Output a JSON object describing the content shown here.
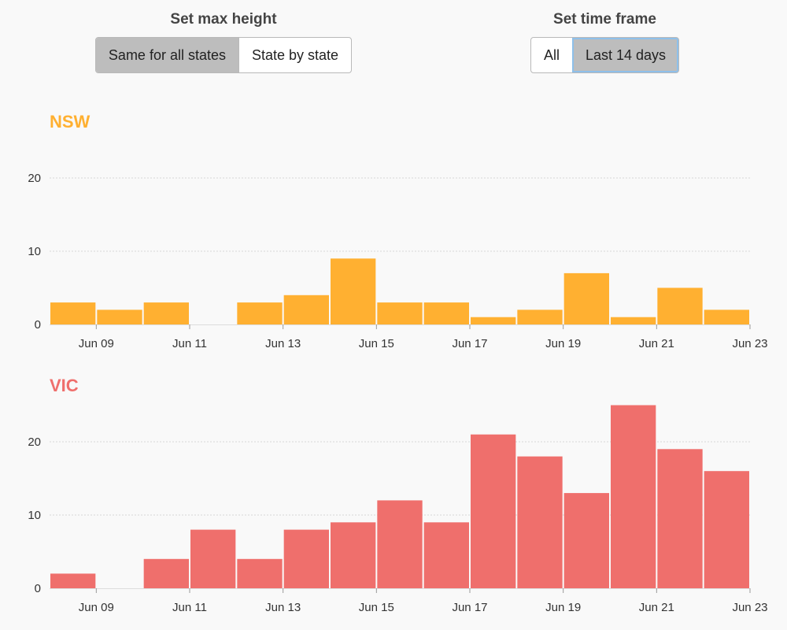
{
  "controls": {
    "max_height": {
      "title": "Set max height",
      "options": [
        "Same for all states",
        "State by state"
      ],
      "selected": "Same for all states"
    },
    "time_frame": {
      "title": "Set time frame",
      "options": [
        "All",
        "Last 14 days"
      ],
      "selected": "Last 14 days"
    }
  },
  "x_ticks": [
    "Jun 09",
    "Jun 11",
    "Jun 13",
    "Jun 15",
    "Jun 17",
    "Jun 19",
    "Jun 21",
    "Jun 23"
  ],
  "chart_data": [
    {
      "type": "bar",
      "title": "NSW",
      "color": "#ffb031",
      "x": [
        "Jun 08",
        "Jun 09",
        "Jun 10",
        "Jun 11",
        "Jun 12",
        "Jun 13",
        "Jun 14",
        "Jun 15",
        "Jun 16",
        "Jun 17",
        "Jun 18",
        "Jun 19",
        "Jun 20",
        "Jun 21",
        "Jun 22"
      ],
      "values": [
        3,
        2,
        3,
        0,
        3,
        4,
        9,
        3,
        3,
        1,
        2,
        7,
        1,
        5,
        2
      ],
      "y_ticks": [
        0,
        10,
        20
      ],
      "ylim": [
        0,
        26
      ],
      "grid": true
    },
    {
      "type": "bar",
      "title": "VIC",
      "color": "#ef6f6c",
      "x": [
        "Jun 08",
        "Jun 09",
        "Jun 10",
        "Jun 11",
        "Jun 12",
        "Jun 13",
        "Jun 14",
        "Jun 15",
        "Jun 16",
        "Jun 17",
        "Jun 18",
        "Jun 19",
        "Jun 20",
        "Jun 21",
        "Jun 22"
      ],
      "values": [
        2,
        0,
        4,
        8,
        4,
        8,
        9,
        12,
        9,
        21,
        18,
        13,
        25,
        19,
        16
      ],
      "y_ticks": [
        0,
        10,
        20
      ],
      "ylim": [
        0,
        26
      ],
      "grid": true
    }
  ]
}
